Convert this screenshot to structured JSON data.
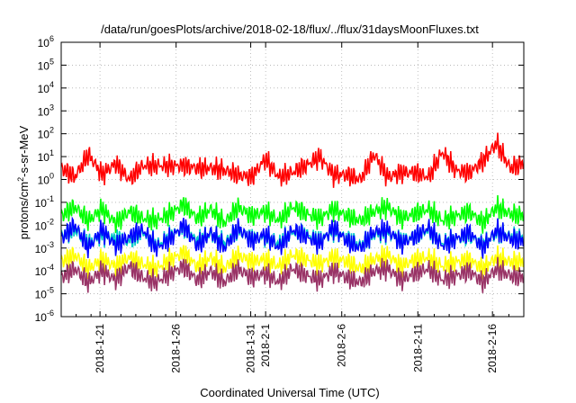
{
  "chart_data": {
    "type": "line",
    "title": "/data/run/goesPlots/archive/2018-02-18/flux/../flux/31daysMoonFluxes.txt",
    "xlabel": "Coordinated Universal Time (UTC)",
    "ylabel": "protons/cm2-s-sr-MeV",
    "ylabel_parts": {
      "base": "protons/cm",
      "sup": "2",
      "rest": "-s-sr-MeV"
    },
    "yscale": "log",
    "ylim_exp": [
      -6,
      6
    ],
    "xlim_days": [
      0,
      31
    ],
    "grid": true,
    "x_ticks": [
      {
        "date": "2018-1-21",
        "pos": 2.6
      },
      {
        "date": "2018-1-26",
        "pos": 7.7
      },
      {
        "date": "2018-1-31",
        "pos": 12.7
      },
      {
        "date": "2018-2-1",
        "pos": 13.7
      },
      {
        "date": "2018-2-6",
        "pos": 18.8
      },
      {
        "date": "2018-2-11",
        "pos": 23.9
      },
      {
        "date": "2018-2-16",
        "pos": 28.9
      }
    ],
    "y_tick_labels": [
      {
        "base": "10",
        "exp": "6"
      },
      {
        "base": "10",
        "exp": "5"
      },
      {
        "base": "10",
        "exp": "4"
      },
      {
        "base": "10",
        "exp": "3"
      },
      {
        "base": "10",
        "exp": "2"
      },
      {
        "base": "10",
        "exp": "1"
      },
      {
        "base": "10",
        "exp": "0"
      },
      {
        "base": "10",
        "exp": "-1"
      },
      {
        "base": "10",
        "exp": "-2"
      },
      {
        "base": "10",
        "exp": "-3"
      },
      {
        "base": "10",
        "exp": "-4"
      },
      {
        "base": "10",
        "exp": "-5"
      },
      {
        "base": "10",
        "exp": "-6"
      }
    ],
    "series": [
      {
        "color": "#ff0000",
        "values_log10": [
          0.5,
          0.1,
          1.1,
          0.2,
          0.7,
          0.0,
          0.6,
          0.6,
          0.6,
          0.6,
          0.5,
          0.5,
          0.4,
          0.2,
          0.1,
          0.9,
          0.1,
          0.3,
          0.6,
          1.0,
          0.2,
          0.2,
          0.0,
          1.1,
          0.1,
          0.3,
          0.3,
          0.1,
          1.2,
          0.4,
          0.3,
          0.8,
          1.6,
          0.5,
          0.7
        ]
      },
      {
        "color": "#00ff00",
        "values_log10": [
          -1.6,
          -1.2,
          -1.8,
          -1.3,
          -1.9,
          -1.4,
          -1.7,
          -1.8,
          -1.5,
          -1.1,
          -1.7,
          -1.3,
          -1.9,
          -1.2,
          -1.6,
          -1.4,
          -1.8,
          -1.2,
          -1.5,
          -1.7,
          -1.3,
          -1.6,
          -1.8,
          -1.4,
          -1.2,
          -1.7,
          -1.5,
          -1.3,
          -1.8,
          -1.6,
          -1.4,
          -1.9,
          -1.2,
          -1.5,
          -1.6
        ]
      },
      {
        "color": "#00c8c8",
        "values_log10": [
          -2.5,
          -2.2,
          -2.8,
          -2.4,
          -2.6,
          -2.7,
          -2.3,
          -2.9,
          -2.5,
          -2.1,
          -2.7,
          -2.4,
          -2.8,
          -2.2,
          -2.6,
          -2.5,
          -2.8,
          -2.3,
          -2.4,
          -2.7,
          -2.2,
          -2.6,
          -2.9,
          -2.4,
          -2.3,
          -2.7,
          -2.5,
          -2.2,
          -2.8,
          -2.6,
          -2.4,
          -2.9,
          -2.3,
          -2.5,
          -2.6
        ]
      },
      {
        "color": "#0000ff",
        "values_log10": [
          -2.6,
          -2.0,
          -3.0,
          -2.2,
          -2.9,
          -2.5,
          -2.2,
          -3.0,
          -2.6,
          -2.0,
          -2.9,
          -2.3,
          -3.0,
          -2.1,
          -2.7,
          -2.4,
          -3.0,
          -2.2,
          -2.5,
          -2.8,
          -2.1,
          -2.7,
          -3.0,
          -2.3,
          -2.2,
          -2.8,
          -2.5,
          -2.1,
          -2.9,
          -2.6,
          -2.3,
          -3.0,
          -2.2,
          -2.6,
          -2.7
        ]
      },
      {
        "color": "#ffff00",
        "values_log10": [
          -3.6,
          -3.3,
          -3.9,
          -3.5,
          -3.8,
          -3.4,
          -3.7,
          -3.9,
          -3.5,
          -3.2,
          -3.8,
          -3.4,
          -3.9,
          -3.3,
          -3.6,
          -3.5,
          -3.8,
          -3.3,
          -3.5,
          -3.7,
          -3.4,
          -3.6,
          -3.9,
          -3.5,
          -3.3,
          -3.8,
          -3.5,
          -3.4,
          -3.8,
          -3.6,
          -3.5,
          -3.9,
          -3.4,
          -3.6,
          -3.6
        ]
      },
      {
        "color": "#993366",
        "values_log10": [
          -4.3,
          -3.9,
          -4.5,
          -4.0,
          -4.4,
          -3.8,
          -4.3,
          -4.5,
          -4.1,
          -3.8,
          -4.4,
          -4.0,
          -4.5,
          -3.9,
          -4.3,
          -4.1,
          -4.5,
          -3.9,
          -4.2,
          -4.4,
          -4.0,
          -4.3,
          -4.5,
          -4.0,
          -3.9,
          -4.4,
          -4.1,
          -3.9,
          -4.4,
          -4.2,
          -4.0,
          -4.5,
          -3.9,
          -4.2,
          -4.3
        ]
      }
    ]
  }
}
